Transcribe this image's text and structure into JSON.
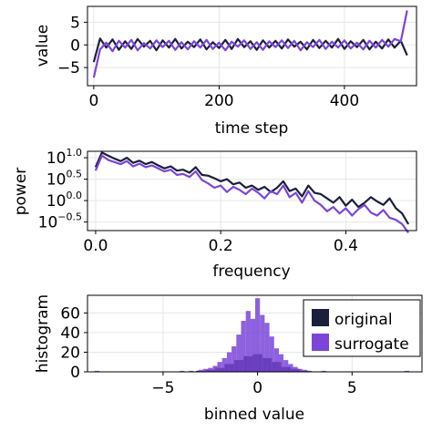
{
  "colors": {
    "original": "#1b1f3b",
    "surrogate": "#7a45d8",
    "grid": "#e6e6e6",
    "axis": "#000000"
  },
  "chart_data": [
    {
      "type": "line",
      "xlabel": "time step",
      "ylabel": "value",
      "xlim": [
        -10,
        515
      ],
      "ylim": [
        -9,
        8.5
      ],
      "xticks": [
        0,
        200,
        400
      ],
      "yticks": [
        5,
        0,
        -5
      ],
      "grid": true,
      "series": [
        {
          "name": "original",
          "color": "#1b1f3b",
          "x": [
            0,
            10,
            20,
            30,
            40,
            50,
            60,
            70,
            80,
            90,
            100,
            110,
            120,
            130,
            140,
            150,
            160,
            170,
            180,
            190,
            200,
            210,
            220,
            230,
            240,
            250,
            260,
            270,
            280,
            290,
            300,
            310,
            320,
            330,
            340,
            350,
            360,
            370,
            380,
            390,
            400,
            410,
            420,
            430,
            440,
            450,
            460,
            470,
            480,
            490,
            500
          ],
          "y": [
            -3.8,
            1.4,
            -0.6,
            1.2,
            -1.1,
            0.8,
            -0.9,
            1.3,
            -0.4,
            0.9,
            -1.2,
            1.0,
            -0.6,
            1.3,
            -0.8,
            0.7,
            -0.5,
            1.2,
            -1.0,
            0.6,
            -0.7,
            1.1,
            -0.9,
            1.3,
            -0.5,
            0.8,
            -1.1,
            1.0,
            -0.6,
            0.9,
            -0.8,
            1.2,
            -0.4,
            0.7,
            -1.0,
            1.1,
            -0.7,
            0.9,
            -0.6,
            1.3,
            -0.9,
            0.8,
            -0.5,
            1.1,
            -1.0,
            0.7,
            -0.8,
            1.2,
            -0.6,
            0.9,
            -2.3
          ]
        },
        {
          "name": "surrogate",
          "color": "#7a45d8",
          "x": [
            0,
            10,
            20,
            30,
            40,
            50,
            60,
            70,
            80,
            90,
            100,
            110,
            120,
            130,
            140,
            150,
            160,
            170,
            180,
            190,
            200,
            210,
            220,
            230,
            240,
            250,
            260,
            270,
            280,
            290,
            300,
            310,
            320,
            330,
            340,
            350,
            360,
            370,
            380,
            390,
            400,
            410,
            420,
            430,
            440,
            450,
            460,
            470,
            480,
            490,
            500
          ],
          "y": [
            -7.2,
            -1.0,
            0.5,
            -1.4,
            0.9,
            -0.6,
            1.1,
            -1.2,
            0.4,
            -0.8,
            1.0,
            -0.5,
            0.9,
            -1.1,
            0.6,
            -1.0,
            0.8,
            -0.6,
            1.1,
            -0.9,
            0.5,
            -1.2,
            0.7,
            -0.4,
            1.0,
            -0.9,
            0.6,
            -1.1,
            0.8,
            -0.5,
            1.0,
            -0.7,
            0.9,
            -1.2,
            0.6,
            -0.5,
            1.1,
            -0.9,
            0.7,
            -0.6,
            1.0,
            -0.8,
            0.5,
            -1.0,
            0.9,
            -0.6,
            1.1,
            -0.4,
            1.3,
            0.8,
            7.6
          ]
        }
      ]
    },
    {
      "type": "line",
      "xlabel": "frequency",
      "ylabel": "power",
      "log_y": true,
      "xlim": [
        -0.013,
        0.513
      ],
      "ylim_log10": [
        -0.7,
        1.15
      ],
      "xticks": [
        "0.0",
        "0.2",
        "0.4"
      ],
      "yticks": [
        {
          "base": "10",
          "exp": "1.0",
          "log10": 1.0
        },
        {
          "base": "10",
          "exp": "0.5",
          "log10": 0.5
        },
        {
          "base": "10",
          "exp": "0.0",
          "log10": 0.0
        },
        {
          "base": "10",
          "exp": "−0.5",
          "log10": -0.5
        }
      ],
      "grid": true,
      "series": [
        {
          "name": "original",
          "color": "#1b1f3b",
          "x": [
            0,
            0.01,
            0.02,
            0.03,
            0.04,
            0.05,
            0.06,
            0.07,
            0.08,
            0.09,
            0.1,
            0.11,
            0.12,
            0.13,
            0.14,
            0.15,
            0.16,
            0.17,
            0.18,
            0.19,
            0.2,
            0.21,
            0.22,
            0.23,
            0.24,
            0.25,
            0.26,
            0.27,
            0.28,
            0.29,
            0.3,
            0.31,
            0.32,
            0.33,
            0.34,
            0.35,
            0.36,
            0.37,
            0.38,
            0.39,
            0.4,
            0.41,
            0.42,
            0.43,
            0.44,
            0.45,
            0.46,
            0.47,
            0.48,
            0.49,
            0.5
          ],
          "y_log10": [
            0.78,
            1.12,
            1.05,
            0.98,
            0.92,
            1.0,
            0.88,
            0.93,
            0.85,
            0.9,
            0.82,
            0.75,
            0.8,
            0.7,
            0.72,
            0.65,
            0.78,
            0.6,
            0.58,
            0.52,
            0.45,
            0.5,
            0.38,
            0.42,
            0.3,
            0.35,
            0.25,
            0.32,
            0.2,
            0.3,
            0.45,
            0.22,
            0.28,
            0.1,
            0.35,
            0.18,
            0.15,
            0.05,
            -0.05,
            0.08,
            -0.12,
            0.02,
            -0.15,
            -0.05,
            0.08,
            -0.02,
            -0.1,
            0.05,
            -0.18,
            -0.3,
            -0.55
          ]
        },
        {
          "name": "surrogate",
          "color": "#7a45d8",
          "x": [
            0,
            0.01,
            0.02,
            0.03,
            0.04,
            0.05,
            0.06,
            0.07,
            0.08,
            0.09,
            0.1,
            0.11,
            0.12,
            0.13,
            0.14,
            0.15,
            0.16,
            0.17,
            0.18,
            0.19,
            0.2,
            0.21,
            0.22,
            0.23,
            0.24,
            0.25,
            0.26,
            0.27,
            0.28,
            0.29,
            0.3,
            0.31,
            0.32,
            0.33,
            0.34,
            0.35,
            0.36,
            0.37,
            0.38,
            0.39,
            0.4,
            0.41,
            0.42,
            0.43,
            0.44,
            0.45,
            0.46,
            0.47,
            0.48,
            0.49,
            0.5
          ],
          "y_log10": [
            0.7,
            1.05,
            0.95,
            0.9,
            0.85,
            0.92,
            0.8,
            0.86,
            0.78,
            0.82,
            0.75,
            0.68,
            0.72,
            0.6,
            0.62,
            0.55,
            0.68,
            0.48,
            0.4,
            0.3,
            0.35,
            0.2,
            0.32,
            0.25,
            0.15,
            0.28,
            0.18,
            0.05,
            0.22,
            0.15,
            0.35,
            0.08,
            0.18,
            -0.05,
            0.22,
            0.0,
            -0.1,
            -0.25,
            -0.15,
            -0.3,
            -0.18,
            -0.35,
            -0.2,
            -0.1,
            -0.28,
            -0.35,
            -0.22,
            -0.4,
            -0.45,
            -0.55,
            -0.75
          ]
        }
      ]
    },
    {
      "type": "bar",
      "subtype": "histogram",
      "xlabel": "binned value",
      "ylabel": "histogram",
      "xlim": [
        -9,
        8.7
      ],
      "ylim": [
        0,
        78
      ],
      "xticks": [
        -5,
        0,
        5
      ],
      "xtick_labels": [
        "−5",
        "0",
        "5"
      ],
      "yticks": [
        60,
        40,
        20,
        0
      ],
      "grid": true,
      "legend": {
        "position": "top-right"
      },
      "series": [
        {
          "name": "original",
          "color": "#1b1f3b",
          "bins": [
            [
              -3.0,
              1
            ],
            [
              -2.5,
              2
            ],
            [
              -2.0,
              4
            ],
            [
              -1.5,
              8
            ],
            [
              -1.0,
              12
            ],
            [
              -0.5,
              16
            ],
            [
              0.0,
              18
            ],
            [
              0.5,
              14
            ],
            [
              1.0,
              10
            ],
            [
              1.5,
              5
            ],
            [
              2.0,
              3
            ],
            [
              2.5,
              1
            ]
          ]
        },
        {
          "name": "surrogate",
          "color": "#7a45d8",
          "bins": [
            [
              -8.5,
              1
            ],
            [
              -4.0,
              1
            ],
            [
              -3.5,
              1
            ],
            [
              -3.0,
              2
            ],
            [
              -2.75,
              3
            ],
            [
              -2.5,
              4
            ],
            [
              -2.25,
              6
            ],
            [
              -2.0,
              10
            ],
            [
              -1.75,
              14
            ],
            [
              -1.5,
              20
            ],
            [
              -1.25,
              26
            ],
            [
              -1.0,
              38
            ],
            [
              -0.75,
              52
            ],
            [
              -0.5,
              62
            ],
            [
              -0.25,
              54
            ],
            [
              0.0,
              75
            ],
            [
              0.25,
              58
            ],
            [
              0.5,
              50
            ],
            [
              0.75,
              36
            ],
            [
              1.0,
              24
            ],
            [
              1.25,
              18
            ],
            [
              1.5,
              12
            ],
            [
              1.75,
              8
            ],
            [
              2.0,
              5
            ],
            [
              2.25,
              3
            ],
            [
              2.5,
              2
            ],
            [
              2.75,
              1
            ],
            [
              3.5,
              1
            ],
            [
              7.9,
              1
            ]
          ]
        }
      ]
    }
  ]
}
